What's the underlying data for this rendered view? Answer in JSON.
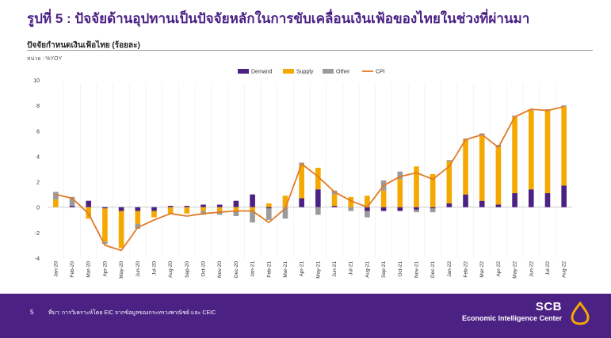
{
  "slide_title": "รูปที่ 5 : ปัจจัยด้านอุปทานเป็นปัจจัยหลักในการขับเคลื่อนเงินเฟ้อของไทยในช่วงที่ผ่านมา",
  "chart_title": "ปัจจัยกำหนดเงินเฟ้อไทย (ร้อยละ)",
  "unit_label": "หน่วย : %YOY",
  "footer": {
    "page_number": "5",
    "source": "ที่มา: การวิเคราะห์โดย EIC จากข้อมูลของกระทรวงพาณิชย์ และ CEIC",
    "brand_name": "SCB",
    "brand_sub": "Economic Intelligence Center"
  },
  "colors": {
    "demand": "#4b2184",
    "supply": "#f5a800",
    "other": "#9b9b9b",
    "cpi": "#e07b26",
    "title": "#4b2184"
  },
  "chart_data": {
    "type": "bar",
    "stacked": true,
    "categories": [
      "Jan-20",
      "Feb-20",
      "Mar-20",
      "Apr-20",
      "May-20",
      "Jun-20",
      "Jul-20",
      "Aug-20",
      "Sep-20",
      "Oct-20",
      "Nov-20",
      "Dec-20",
      "Jan-21",
      "Feb-21",
      "Mar-21",
      "Apr-21",
      "May-21",
      "Jun-21",
      "Jul-21",
      "Aug-21",
      "Sep-21",
      "Oct-21",
      "Nov-21",
      "Dec-21",
      "Jan-22",
      "Feb-22",
      "Mar-22",
      "Apr-22",
      "May-22",
      "Jun-22",
      "Jul-22",
      "Aug-22"
    ],
    "series": [
      {
        "name": "Demand",
        "values": [
          0.0,
          0.1,
          0.5,
          -0.1,
          -0.3,
          -0.3,
          -0.3,
          0.1,
          0.1,
          0.2,
          0.2,
          0.5,
          1.0,
          -0.1,
          0.0,
          0.7,
          1.4,
          0.1,
          0.0,
          -0.3,
          -0.3,
          -0.3,
          -0.2,
          -0.1,
          0.3,
          1.0,
          0.5,
          0.2,
          1.1,
          1.4,
          1.1,
          1.7
        ]
      },
      {
        "name": "Supply",
        "values": [
          0.6,
          0.0,
          -0.9,
          -2.6,
          -2.9,
          -1.0,
          -0.5,
          -0.5,
          -0.5,
          -0.3,
          -0.3,
          -0.3,
          -0.3,
          0.3,
          0.9,
          2.6,
          1.7,
          0.9,
          0.8,
          0.9,
          1.3,
          2.2,
          3.2,
          2.6,
          3.3,
          4.3,
          5.1,
          4.5,
          6.0,
          6.2,
          6.5,
          6.2
        ]
      },
      {
        "name": "Other",
        "values": [
          0.6,
          0.7,
          0.0,
          -0.2,
          0.0,
          -0.4,
          0.0,
          0.0,
          0.0,
          -0.3,
          -0.3,
          -0.4,
          -0.9,
          -0.9,
          -0.9,
          0.2,
          -0.6,
          0.3,
          -0.3,
          -0.5,
          0.8,
          0.6,
          -0.2,
          -0.3,
          0.1,
          0.1,
          0.2,
          0.2,
          0.1,
          0.1,
          0.1,
          0.1
        ]
      }
    ],
    "line": {
      "name": "CPI",
      "values": [
        1.0,
        0.7,
        -0.5,
        -3.0,
        -3.4,
        -1.6,
        -1.0,
        -0.5,
        -0.7,
        -0.5,
        -0.4,
        -0.3,
        -0.3,
        -1.2,
        -0.1,
        3.4,
        2.4,
        1.2,
        0.5,
        0.0,
        1.7,
        2.4,
        2.7,
        2.2,
        3.2,
        5.3,
        5.7,
        4.7,
        7.1,
        7.7,
        7.6,
        7.9
      ]
    },
    "ylim": [
      -4,
      10
    ],
    "yticks": [
      -4,
      -2,
      0,
      2,
      4,
      6,
      8,
      10
    ],
    "legend_position": "top",
    "grid": false
  }
}
